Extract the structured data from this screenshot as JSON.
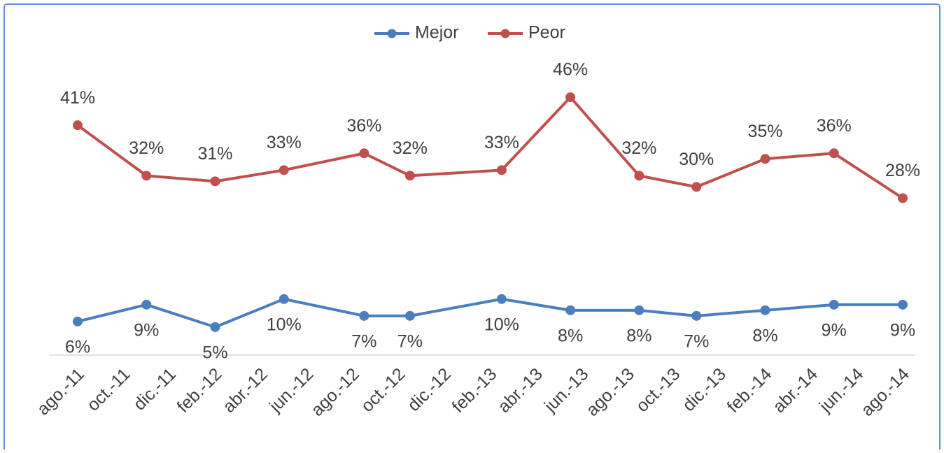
{
  "chart_data": {
    "type": "line",
    "x": [
      0,
      3,
      6,
      9,
      12.5,
      14.5,
      18.5,
      21.5,
      24.5,
      27,
      30,
      33,
      36
    ],
    "xlim": [
      0,
      36
    ],
    "xticks": [
      {
        "value": 0,
        "label": "ago.-11"
      },
      {
        "value": 2,
        "label": "oct.-11"
      },
      {
        "value": 4,
        "label": "dic.-11"
      },
      {
        "value": 6,
        "label": "feb.-12"
      },
      {
        "value": 8,
        "label": "abr.-12"
      },
      {
        "value": 10,
        "label": "jun.-12"
      },
      {
        "value": 12,
        "label": "ago.-12"
      },
      {
        "value": 14,
        "label": "oct.-12"
      },
      {
        "value": 16,
        "label": "dic.-12"
      },
      {
        "value": 18,
        "label": "feb.-13"
      },
      {
        "value": 20,
        "label": "abr.-13"
      },
      {
        "value": 22,
        "label": "jun.-13"
      },
      {
        "value": 24,
        "label": "ago.-13"
      },
      {
        "value": 26,
        "label": "oct.-13"
      },
      {
        "value": 28,
        "label": "dic.-13"
      },
      {
        "value": 30,
        "label": "feb.-14"
      },
      {
        "value": 32,
        "label": "abr.-14"
      },
      {
        "value": 34,
        "label": "jun.-14"
      },
      {
        "value": 36,
        "label": "ago.-14"
      }
    ],
    "ylim": [
      0,
      50
    ],
    "legend": "top",
    "series": [
      {
        "name": "Mejor",
        "color": "#4a7ebf",
        "values": [
          6,
          9,
          5,
          10,
          7,
          7,
          10,
          8,
          8,
          7,
          8,
          9,
          9
        ],
        "value_labels": [
          "6%",
          "9%",
          "5%",
          "10%",
          "7%",
          "7%",
          "10%",
          "8%",
          "8%",
          "7%",
          "8%",
          "9%",
          "9%"
        ],
        "label_position": "below"
      },
      {
        "name": "Peor",
        "color": "#c0504d",
        "values": [
          41,
          32,
          31,
          33,
          36,
          32,
          33,
          46,
          32,
          30,
          35,
          36,
          28
        ],
        "value_labels": [
          "41%",
          "32%",
          "31%",
          "33%",
          "36%",
          "32%",
          "33%",
          "46%",
          "32%",
          "30%",
          "35%",
          "36%",
          "28%"
        ],
        "label_position": "above"
      }
    ]
  }
}
